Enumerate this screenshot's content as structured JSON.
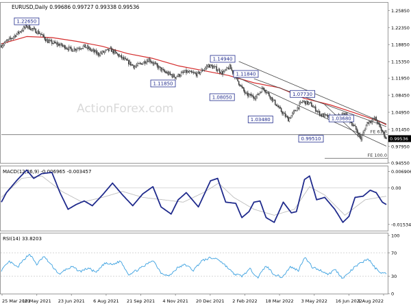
{
  "chart_data": [
    {
      "panel": "price",
      "type": "candlestick",
      "header_label": "EURUSD,Daily  0.99686 0.99727 0.99338 0.99536",
      "watermark": "ActionForex.com",
      "current_price": 0.99536,
      "current_price_label": "0.99536",
      "ylim": [
        0.9455,
        1.2745
      ],
      "y_ticks": [
        "1.25850",
        "1.22350",
        "1.18850",
        "1.15350",
        "1.11950",
        "1.08450",
        "1.04950",
        "1.01450",
        "0.97950",
        "0.94550"
      ],
      "x_ticks": [
        "25 Mar 2021",
        "10 May 2021",
        "23 Jun 2021",
        "6 Aug 2021",
        "21 Sep 2021",
        "4 Nov 2021",
        "20 Dec 2021",
        "2 Feb 2022",
        "18 Mar 2022",
        "3 May 2022",
        "16 Jun 2022",
        "1 Aug 2022"
      ],
      "price_path": [
        [
          0,
          1.187
        ],
        [
          12,
          1.205
        ],
        [
          25,
          1.2265
        ],
        [
          38,
          1.212
        ],
        [
          46,
          1.195
        ],
        [
          58,
          1.188
        ],
        [
          70,
          1.178
        ],
        [
          82,
          1.185
        ],
        [
          96,
          1.169
        ],
        [
          108,
          1.1785
        ],
        [
          120,
          1.16
        ],
        [
          132,
          1.143
        ],
        [
          146,
          1.158
        ],
        [
          160,
          1.134
        ],
        [
          172,
          1.122
        ],
        [
          182,
          1.1325
        ],
        [
          194,
          1.1275
        ],
        [
          205,
          1.146
        ],
        [
          212,
          1.14
        ],
        [
          219,
          1.13
        ],
        [
          226,
          1.1425
        ],
        [
          235,
          1.11
        ],
        [
          242,
          1.086
        ],
        [
          252,
          1.0805
        ],
        [
          259,
          1.1
        ],
        [
          266,
          1.082
        ],
        [
          276,
          1.054
        ],
        [
          284,
          1.0348
        ],
        [
          292,
          1.056
        ],
        [
          298,
          1.072
        ],
        [
          306,
          1.066
        ],
        [
          316,
          1.045
        ],
        [
          328,
          1.037
        ],
        [
          340,
          1.046
        ],
        [
          350,
          1.018
        ],
        [
          356,
          0.9951
        ],
        [
          362,
          1.028
        ],
        [
          370,
          1.0368
        ],
        [
          377,
          1.01
        ],
        [
          381,
          0.995
        ]
      ],
      "sma_path": [
        [
          0,
          1.19
        ],
        [
          25,
          1.205
        ],
        [
          50,
          1.203
        ],
        [
          75,
          1.195
        ],
        [
          100,
          1.185
        ],
        [
          125,
          1.17
        ],
        [
          150,
          1.16
        ],
        [
          175,
          1.145
        ],
        [
          200,
          1.135
        ],
        [
          225,
          1.125
        ],
        [
          250,
          1.11
        ],
        [
          275,
          1.1
        ],
        [
          300,
          1.078
        ],
        [
          325,
          1.065
        ],
        [
          350,
          1.048
        ],
        [
          375,
          1.03
        ],
        [
          381,
          1.024
        ]
      ],
      "trend_lines": [
        {
          "from": [
            235,
            1.154
          ],
          "to": [
            381,
            1.0255
          ]
        },
        {
          "from": [
            235,
            1.12
          ],
          "to": [
            381,
            0.98
          ]
        },
        {
          "from": [
            250,
            1.1185
          ],
          "to": [
            381,
            1.02
          ]
        },
        {
          "from": [
            320,
            1.065
          ],
          "to": [
            356,
            0.9951
          ]
        }
      ],
      "fe_levels": [
        {
          "label": "FE 61.8",
          "value": 1.0035,
          "x_from": 0
        },
        {
          "label": "FE 100.0",
          "value": 0.955,
          "x_from": 320
        }
      ],
      "annotations": [
        {
          "text": "1.22650",
          "x": 25,
          "value": 1.2265,
          "pos": "above"
        },
        {
          "text": "1.11850",
          "x": 160,
          "value": 1.1185,
          "pos": "below"
        },
        {
          "text": "1.14940",
          "x": 219,
          "value": 1.1494,
          "pos": "above"
        },
        {
          "text": "1.11840",
          "x": 242,
          "value": 1.1184,
          "pos": "above"
        },
        {
          "text": "1.08050",
          "x": 232,
          "value": 1.0805,
          "pos": "left"
        },
        {
          "text": "1.07730",
          "x": 298,
          "value": 1.0773,
          "pos": "above"
        },
        {
          "text": "1.03480",
          "x": 270,
          "value": 1.0348,
          "pos": "left"
        },
        {
          "text": "1.03680",
          "x": 350,
          "value": 1.0368,
          "pos": "left"
        },
        {
          "text": "0.99510",
          "x": 320,
          "value": 0.9951,
          "pos": "left"
        }
      ]
    },
    {
      "panel": "macd",
      "type": "line",
      "header_label": "MACD(12,26,9) -0.006965 -0.003457",
      "ylim": [
        -0.0177,
        0.0082
      ],
      "y_ticks": [
        "0.006906",
        "0.00",
        "-0.015348"
      ],
      "zero_line": 0.0,
      "macd_points": [
        [
          0,
          -0.006
        ],
        [
          5,
          -0.002
        ],
        [
          15,
          0.003
        ],
        [
          25,
          0.0075
        ],
        [
          32,
          0.004
        ],
        [
          40,
          0.006
        ],
        [
          50,
          0.0065
        ],
        [
          58,
          -0.002
        ],
        [
          66,
          -0.009
        ],
        [
          74,
          -0.007
        ],
        [
          82,
          -0.0055
        ],
        [
          90,
          -0.0075
        ],
        [
          100,
          -0.003
        ],
        [
          110,
          0.002
        ],
        [
          120,
          -0.003
        ],
        [
          130,
          -0.0075
        ],
        [
          140,
          -0.0025
        ],
        [
          150,
          0.0005
        ],
        [
          158,
          -0.008
        ],
        [
          168,
          -0.011
        ],
        [
          175,
          -0.005
        ],
        [
          183,
          -0.002
        ],
        [
          195,
          -0.008
        ],
        [
          207,
          0.003
        ],
        [
          214,
          0.004
        ],
        [
          222,
          -0.006
        ],
        [
          232,
          -0.0065
        ],
        [
          238,
          -0.0125
        ],
        [
          245,
          -0.01
        ],
        [
          250,
          -0.006
        ],
        [
          256,
          -0.0055
        ],
        [
          262,
          -0.0125
        ],
        [
          270,
          -0.0145
        ],
        [
          279,
          -0.006
        ],
        [
          287,
          -0.0105
        ],
        [
          292,
          -0.01
        ],
        [
          300,
          0.0035
        ],
        [
          305,
          0.005
        ],
        [
          312,
          -0.005
        ],
        [
          320,
          -0.004
        ],
        [
          330,
          -0.009
        ],
        [
          338,
          -0.0145
        ],
        [
          344,
          -0.012
        ],
        [
          350,
          -0.004
        ],
        [
          358,
          -0.0035
        ],
        [
          365,
          -0.001
        ],
        [
          371,
          -0.002
        ],
        [
          377,
          -0.006
        ],
        [
          381,
          -0.007
        ]
      ],
      "signal_points": [
        [
          0,
          -0.004
        ],
        [
          20,
          0.004
        ],
        [
          40,
          0.005
        ],
        [
          60,
          -0.0015
        ],
        [
          80,
          -0.006
        ],
        [
          100,
          -0.004
        ],
        [
          120,
          -0.0015
        ],
        [
          140,
          -0.004
        ],
        [
          160,
          -0.005
        ],
        [
          180,
          -0.006
        ],
        [
          200,
          -0.002
        ],
        [
          215,
          0.002
        ],
        [
          230,
          -0.004
        ],
        [
          250,
          -0.009
        ],
        [
          270,
          -0.0115
        ],
        [
          290,
          -0.009
        ],
        [
          305,
          0.0005
        ],
        [
          320,
          -0.003
        ],
        [
          340,
          -0.0115
        ],
        [
          360,
          -0.005
        ],
        [
          381,
          -0.0035
        ]
      ]
    },
    {
      "panel": "rsi",
      "type": "line",
      "header_label": "RSI(14) 33.8203",
      "ylim": [
        0,
        100
      ],
      "y_ticks": [
        "100",
        "70",
        "30",
        "0"
      ],
      "levels": [
        70,
        30
      ],
      "rsi_points": [
        [
          0,
          40
        ],
        [
          8,
          55
        ],
        [
          16,
          45
        ],
        [
          24,
          62
        ],
        [
          28,
          68
        ],
        [
          35,
          50
        ],
        [
          42,
          64
        ],
        [
          50,
          48
        ],
        [
          58,
          32
        ],
        [
          62,
          40
        ],
        [
          70,
          46
        ],
        [
          78,
          38
        ],
        [
          86,
          44
        ],
        [
          94,
          36
        ],
        [
          102,
          52
        ],
        [
          110,
          50
        ],
        [
          118,
          56
        ],
        [
          126,
          33
        ],
        [
          134,
          40
        ],
        [
          142,
          48
        ],
        [
          150,
          58
        ],
        [
          158,
          36
        ],
        [
          166,
          30
        ],
        [
          174,
          44
        ],
        [
          182,
          50
        ],
        [
          190,
          40
        ],
        [
          198,
          56
        ],
        [
          206,
          61
        ],
        [
          214,
          60
        ],
        [
          222,
          48
        ],
        [
          230,
          34
        ],
        [
          238,
          30
        ],
        [
          246,
          42
        ],
        [
          254,
          28
        ],
        [
          262,
          48
        ],
        [
          270,
          33
        ],
        [
          278,
          28
        ],
        [
          286,
          46
        ],
        [
          294,
          40
        ],
        [
          300,
          63
        ],
        [
          308,
          45
        ],
        [
          316,
          40
        ],
        [
          324,
          33
        ],
        [
          330,
          42
        ],
        [
          338,
          26
        ],
        [
          344,
          36
        ],
        [
          350,
          46
        ],
        [
          358,
          55
        ],
        [
          363,
          60
        ],
        [
          370,
          44
        ],
        [
          376,
          36
        ],
        [
          381,
          33.82
        ]
      ]
    }
  ],
  "colors": {
    "candle": "#3f3f3f",
    "sma": "#d42b2b",
    "macd": "#1f2a8c",
    "macd_signal": "#bdbdbd",
    "rsi": "#3aa0e0",
    "trend": "#444444",
    "label_text": "#1f2a8c",
    "current_box": "#000000"
  }
}
